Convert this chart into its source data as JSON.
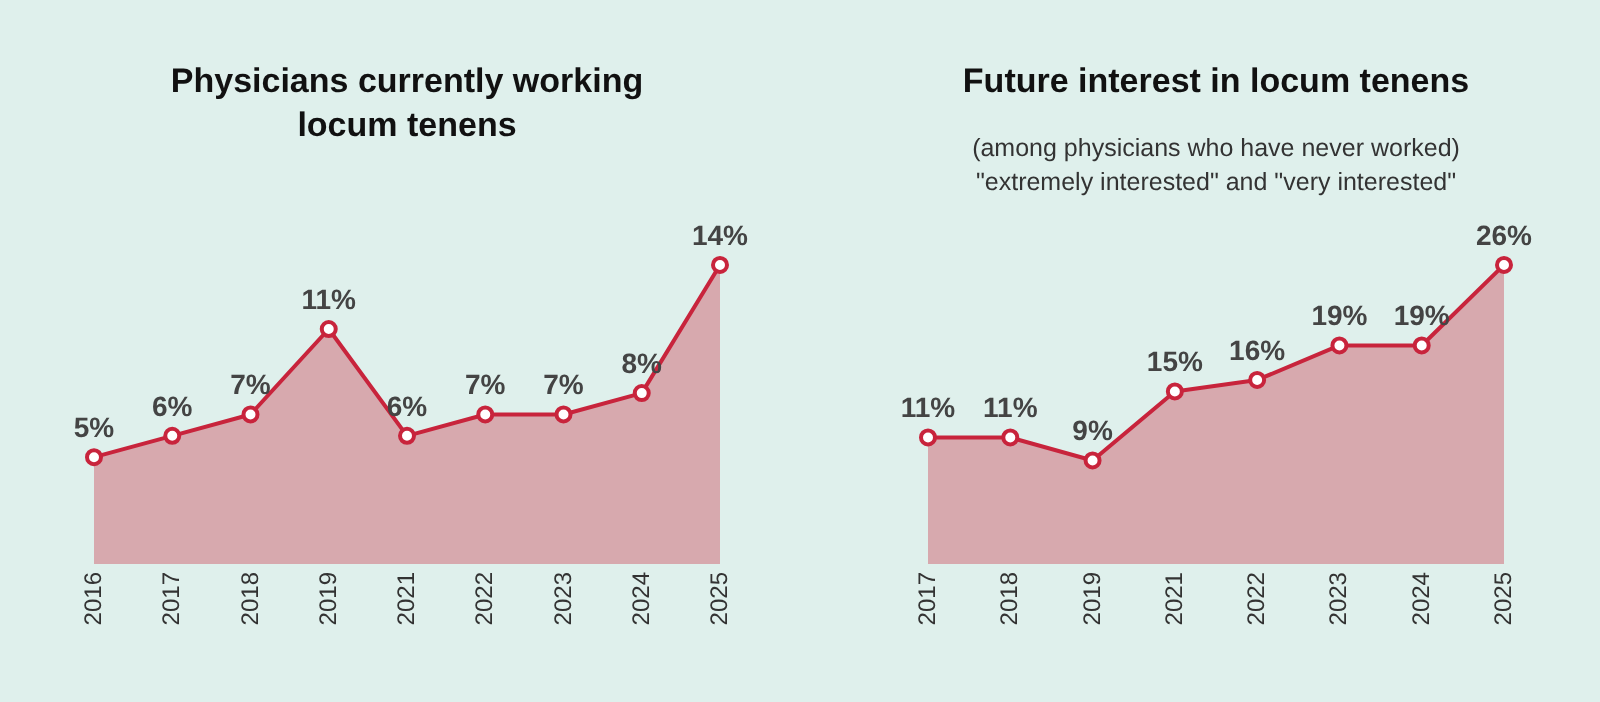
{
  "chart_data": [
    {
      "type": "area",
      "title": "Physicians currently working locum tenens",
      "categories": [
        "2016",
        "2017",
        "2018",
        "2019",
        "2021",
        "2022",
        "2023",
        "2024",
        "2025"
      ],
      "series": [
        {
          "color": "#c8243c",
          "values": [
            5,
            6,
            7,
            11,
            6,
            7,
            7,
            8,
            14
          ],
          "value_labels": [
            "5%",
            "6%",
            "7%",
            "11%",
            "6%",
            "7%",
            "7%",
            "8%",
            "14%"
          ]
        }
      ],
      "tick_labels": "x",
      "marker": "circle"
    },
    {
      "type": "area",
      "title": "Future interest in locum tenens",
      "subtitle": "(among physicians who have never worked) \"extremely interested\" and \"very interested\"",
      "categories": [
        "2017",
        "2018",
        "2019",
        "2021",
        "2022",
        "2023",
        "2024",
        "2025"
      ],
      "series": [
        {
          "color": "#c8243c",
          "values": [
            11,
            11,
            9,
            15,
            16,
            19,
            19,
            26
          ],
          "value_labels": [
            "11%",
            "11%",
            "9%",
            "15%",
            "16%",
            "19%",
            "19%",
            "26%"
          ]
        }
      ],
      "tick_labels": "x",
      "marker": "circle"
    }
  ]
}
